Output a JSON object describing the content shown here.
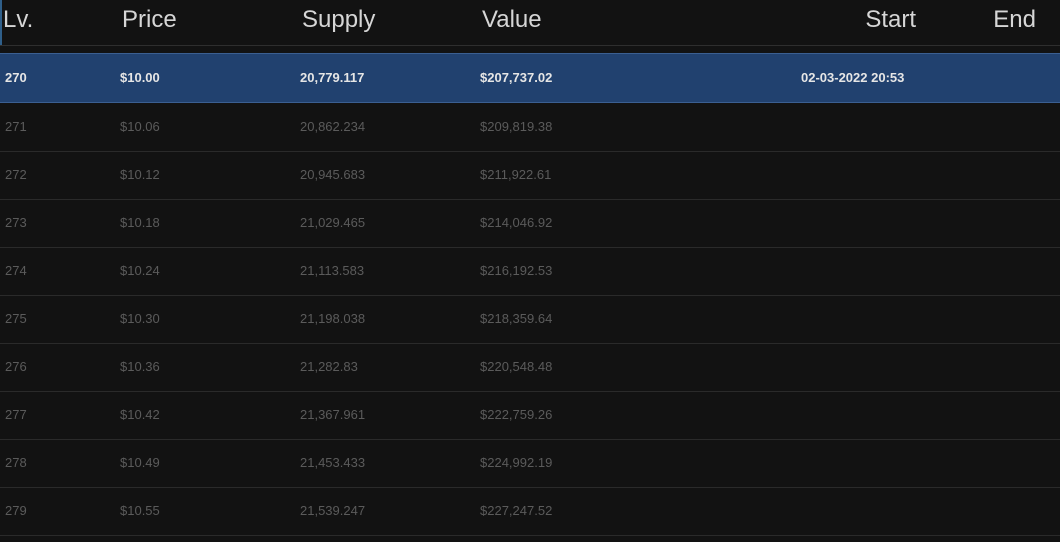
{
  "columns": {
    "lv": "Lv.",
    "price": "Price",
    "supply": "Supply",
    "value": "Value",
    "start": "Start",
    "end": "End"
  },
  "rows": [
    {
      "lv": "270",
      "price": "$10.00",
      "supply": "20,779.117",
      "value": "$207,737.02",
      "start": "02-03-2022 20:53",
      "end": "",
      "selected": true
    },
    {
      "lv": "271",
      "price": "$10.06",
      "supply": "20,862.234",
      "value": "$209,819.38",
      "start": "",
      "end": ""
    },
    {
      "lv": "272",
      "price": "$10.12",
      "supply": "20,945.683",
      "value": "$211,922.61",
      "start": "",
      "end": ""
    },
    {
      "lv": "273",
      "price": "$10.18",
      "supply": "21,029.465",
      "value": "$214,046.92",
      "start": "",
      "end": ""
    },
    {
      "lv": "274",
      "price": "$10.24",
      "supply": "21,113.583",
      "value": "$216,192.53",
      "start": "",
      "end": ""
    },
    {
      "lv": "275",
      "price": "$10.30",
      "supply": "21,198.038",
      "value": "$218,359.64",
      "start": "",
      "end": ""
    },
    {
      "lv": "276",
      "price": "$10.36",
      "supply": "21,282.83",
      "value": "$220,548.48",
      "start": "",
      "end": ""
    },
    {
      "lv": "277",
      "price": "$10.42",
      "supply": "21,367.961",
      "value": "$222,759.26",
      "start": "",
      "end": ""
    },
    {
      "lv": "278",
      "price": "$10.49",
      "supply": "21,453.433",
      "value": "$224,992.19",
      "start": "",
      "end": ""
    },
    {
      "lv": "279",
      "price": "$10.55",
      "supply": "21,539.247",
      "value": "$227,247.52",
      "start": "",
      "end": ""
    }
  ],
  "colors": {
    "background": "#121212",
    "selected_row": "#21416f",
    "header_text": "#d6d6d6",
    "row_text": "#5b5b5b"
  }
}
